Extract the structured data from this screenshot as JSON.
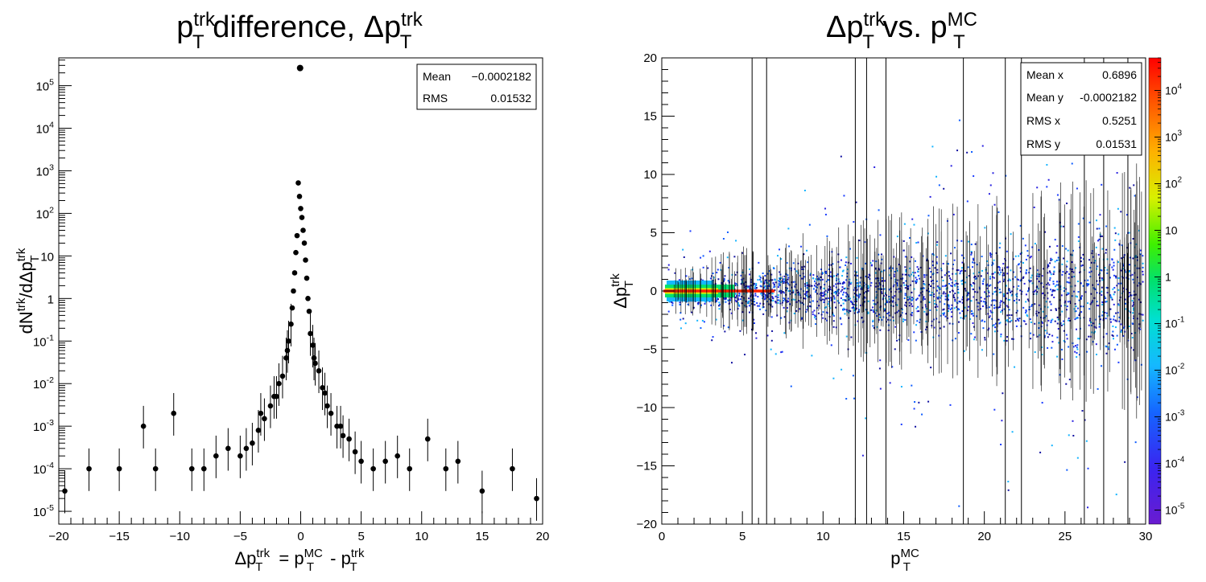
{
  "chart_data": [
    {
      "type": "scatter",
      "title": {
        "base": "p",
        "sup1": "trk",
        "sub1": "T",
        "rest": " difference, Δp",
        "sup2": "trk",
        "sub2": "T"
      },
      "xlabel": {
        "lhs": "Δp",
        "lhs_sup": "trk",
        "lhs_sub": "T",
        "eq": " = p",
        "a_sup": "MC",
        "a_sub": "T",
        "minus": " - p",
        "b_sup": "trk",
        "b_sub": "T"
      },
      "ylabel": {
        "a": "dN",
        "a_sup": "trk",
        "b": "/dΔp",
        "b_sup": "trk",
        "b_sub": "T"
      },
      "xlim": [
        -20,
        20
      ],
      "ylim": [
        5e-06,
        450000.0
      ],
      "log_y": true,
      "x_ticks": [
        -20,
        -15,
        -10,
        -5,
        0,
        5,
        10,
        15,
        20
      ],
      "y_ticks": [
        {
          "base": "10",
          "exp": "-5"
        },
        {
          "base": "10",
          "exp": "-4"
        },
        {
          "base": "10",
          "exp": "-3"
        },
        {
          "base": "10",
          "exp": "-2"
        },
        {
          "base": "10",
          "exp": "-1"
        },
        {
          "base": "1",
          "exp": ""
        },
        {
          "base": "10",
          "exp": ""
        },
        {
          "base": "10",
          "exp": "2"
        },
        {
          "base": "10",
          "exp": "3"
        },
        {
          "base": "10",
          "exp": "4"
        },
        {
          "base": "10",
          "exp": "5"
        }
      ],
      "stats": [
        {
          "label": "Mean",
          "value": "−0.0002182"
        },
        {
          "label": "RMS",
          "value": "0.01532"
        }
      ],
      "peak": {
        "x": -0.05,
        "y": 260000.0
      },
      "series": [
        {
          "x": [
            -0.2,
            -0.1,
            0.0,
            0.1,
            0.2,
            0.3,
            -0.3,
            -0.4,
            0.4,
            0.5,
            -0.5,
            -0.6,
            0.6,
            0.7,
            -0.7,
            -0.8,
            0.8,
            1.0,
            -1.0,
            -1.2,
            1.2,
            1.5,
            -1.5,
            -1.8,
            1.8,
            2.0,
            -2.0,
            -2.5,
            2.5,
            3.0,
            -3.0,
            -3.5,
            3.5,
            4.0,
            -4.0,
            -4.5,
            4.5,
            -5.0,
            5.0,
            -6.0,
            6.0,
            -7.0,
            7.0,
            -8.0,
            8.0,
            -9.0,
            9.0,
            -10.5,
            10.5,
            -12.0,
            12.0,
            -13.0,
            13.0,
            -15.0,
            15.0,
            -17.5,
            17.5,
            -19.5,
            19.5,
            -1.1,
            1.1,
            -2.2,
            2.2,
            -3.3,
            3.3
          ],
          "y": [
            520,
            250,
            130,
            80,
            40,
            20,
            30,
            12,
            8,
            3,
            4,
            1.5,
            1,
            0.5,
            0.6,
            0.25,
            0.15,
            0.08,
            0.1,
            0.04,
            0.03,
            0.02,
            0.015,
            0.01,
            0.008,
            0.006,
            0.005,
            0.003,
            0.002,
            0.001,
            0.0015,
            0.0008,
            0.0006,
            0.0005,
            0.0004,
            0.0003,
            0.00025,
            0.0002,
            0.00015,
            0.0003,
            0.0001,
            0.0002,
            0.00015,
            0.0001,
            0.0002,
            0.0001,
            0.0001,
            0.002,
            0.0005,
            0.0001,
            0.0001,
            0.001,
            0.00015,
            0.0001,
            3e-05,
            0.0001,
            0.0001,
            3e-05,
            2e-05,
            0.06,
            0.04,
            0.005,
            0.003,
            0.002,
            0.001
          ]
        }
      ]
    },
    {
      "type": "heatmap",
      "title": {
        "a": "Δp",
        "a_sup": "trk",
        "a_sub": "T",
        "mid": " vs. p",
        "b_sup": "MC",
        "b_sub": "T"
      },
      "xlabel": {
        "base": "p",
        "sup": "MC",
        "sub": "T"
      },
      "ylabel": {
        "base": "Δp",
        "sup": "trk",
        "sub": "T"
      },
      "xlim": [
        0,
        30
      ],
      "ylim": [
        -20,
        20
      ],
      "x_ticks": [
        0,
        5,
        10,
        15,
        20,
        25,
        30
      ],
      "y_ticks": [
        -20,
        -15,
        -10,
        -5,
        0,
        5,
        10,
        15,
        20
      ],
      "z_log": true,
      "zlim": [
        5e-06,
        50000.0
      ],
      "z_ticks": [
        {
          "base": "10",
          "exp": "-5"
        },
        {
          "base": "10",
          "exp": "-4"
        },
        {
          "base": "10",
          "exp": "-3"
        },
        {
          "base": "10",
          "exp": "-2"
        },
        {
          "base": "10",
          "exp": "-1"
        },
        {
          "base": "1",
          "exp": ""
        },
        {
          "base": "10",
          "exp": ""
        },
        {
          "base": "10",
          "exp": "2"
        },
        {
          "base": "10",
          "exp": "3"
        },
        {
          "base": "10",
          "exp": "4"
        }
      ],
      "stats": [
        {
          "label": "Mean x",
          "value": "0.6896"
        },
        {
          "label": "Mean y",
          "value": "-0.0002182"
        },
        {
          "label": "RMS x",
          "value": "0.5251"
        },
        {
          "label": "RMS y",
          "value": "0.01531"
        }
      ],
      "long_error_bars_x": [
        5.6,
        6.5,
        12.0,
        12.7,
        13.9,
        18.7,
        21.3,
        22.3,
        26.2,
        27.4,
        28.9
      ]
    }
  ]
}
